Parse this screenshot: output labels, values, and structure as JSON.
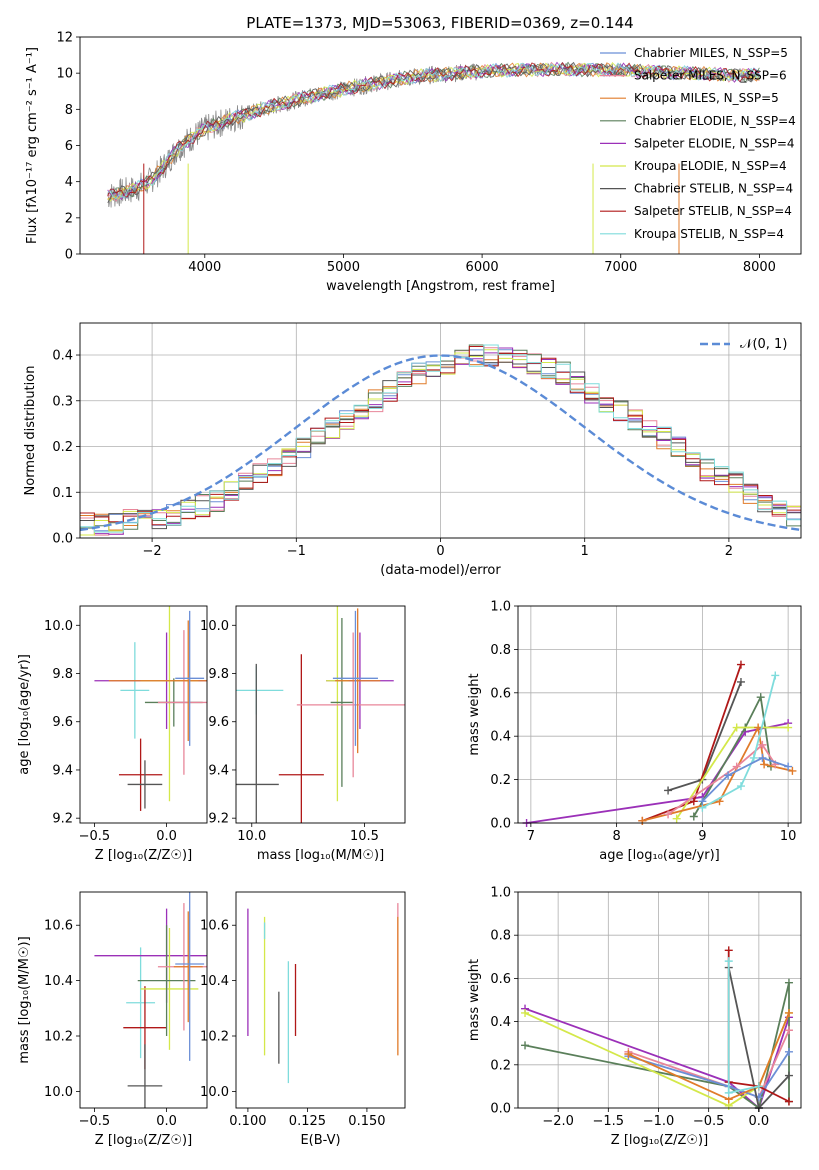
{
  "chart_data": [
    {
      "type": "line",
      "title": "PLATE=1373, MJD=53063, FIBERID=0369, z=0.144",
      "xlabel": "wavelength [Angstrom, rest frame]",
      "ylabel": "Flux [fλ10⁻¹⁷ erg cm⁻² s⁻¹ A⁻¹]",
      "xlim": [
        3100,
        8300
      ],
      "ylim": [
        0,
        12
      ],
      "xticks": [
        4000,
        5000,
        6000,
        7000,
        8000
      ],
      "yticks": [
        0,
        2,
        4,
        6,
        8,
        10,
        12
      ],
      "legend_position": "top-right",
      "series": [
        {
          "name": "Chabrier MILES, N_SSP=5",
          "color": "#6b8fd6"
        },
        {
          "name": "Salpeter MILES, N_SSP=6",
          "color": "#e8869a"
        },
        {
          "name": "Kroupa MILES, N_SSP=5",
          "color": "#e07b2a"
        },
        {
          "name": "Chabrier ELODIE, N_SSP=4",
          "color": "#5a7f5a"
        },
        {
          "name": "Salpeter ELODIE, N_SSP=4",
          "color": "#9b30b8"
        },
        {
          "name": "Kroupa ELODIE, N_SSP=4",
          "color": "#d4e84a"
        },
        {
          "name": "Chabrier STELIB, N_SSP=4",
          "color": "#555555"
        },
        {
          "name": "Salpeter STELIB, N_SSP=4",
          "color": "#b01818"
        },
        {
          "name": "Kroupa STELIB, N_SSP=4",
          "color": "#7fdcdc"
        }
      ],
      "continuum": {
        "x": [
          3300,
          3400,
          3500,
          3600,
          3700,
          3800,
          3900,
          4000,
          4200,
          4500,
          4800,
          5000,
          5200,
          5500,
          5800,
          6000,
          6300,
          6600,
          6900,
          7200,
          7500,
          7800,
          8000
        ],
        "y": [
          3.2,
          3.4,
          3.6,
          4.0,
          4.8,
          5.8,
          6.4,
          6.9,
          7.5,
          8.2,
          8.8,
          9.1,
          9.4,
          9.8,
          10.0,
          10.1,
          10.2,
          10.2,
          10.2,
          10.1,
          10.0,
          9.9,
          9.9
        ]
      }
    },
    {
      "type": "histogram",
      "xlabel": "(data-model)/error",
      "ylabel": "Normed distribution",
      "xlim": [
        -2.5,
        2.5
      ],
      "ylim": [
        0,
        0.47
      ],
      "xticks": [
        -2,
        -1,
        0,
        1,
        2
      ],
      "yticks": [
        0.0,
        0.1,
        0.2,
        0.3,
        0.4
      ],
      "grid": true,
      "legend_position": "top-right",
      "reference_curve": "𝒩(0, 1)",
      "reference_color": "#5b8bd6",
      "bin_width": 0.1,
      "bin_start": -2.5,
      "base_values": [
        0.03,
        0.03,
        0.03,
        0.04,
        0.04,
        0.04,
        0.05,
        0.06,
        0.07,
        0.08,
        0.1,
        0.12,
        0.14,
        0.15,
        0.18,
        0.2,
        0.22,
        0.24,
        0.26,
        0.28,
        0.3,
        0.32,
        0.34,
        0.36,
        0.37,
        0.38,
        0.39,
        0.4,
        0.4,
        0.4,
        0.39,
        0.38,
        0.37,
        0.36,
        0.34,
        0.32,
        0.3,
        0.28,
        0.26,
        0.24,
        0.22,
        0.2,
        0.18,
        0.15,
        0.14,
        0.12,
        0.1,
        0.08,
        0.06,
        0.05
      ]
    },
    {
      "type": "errorbar",
      "xlabel": "Z [log₁₀(Z/Z☉)]",
      "ylabel": "age  [log₁₀(age/yr)]",
      "xlim": [
        -0.6,
        0.28
      ],
      "ylim": [
        9.18,
        10.08
      ],
      "xticks": [
        -0.5,
        0.0
      ],
      "yticks": [
        9.2,
        9.4,
        9.6,
        9.8,
        10.0
      ],
      "points": [
        {
          "x": -0.22,
          "y": 9.73,
          "xerr": 0.1,
          "yerr": 0.2,
          "color": "#7fdcdc"
        },
        {
          "x": -0.18,
          "y": 9.38,
          "xerr": 0.15,
          "yerr": 0.15,
          "color": "#b01818"
        },
        {
          "x": -0.15,
          "y": 9.34,
          "xerr": 0.12,
          "yerr": 0.1,
          "color": "#555555"
        },
        {
          "x": 0.0,
          "y": 9.77,
          "xerr": 0.5,
          "yerr": 0.2,
          "color": "#9b30b8"
        },
        {
          "x": 0.02,
          "y": 9.77,
          "xerr": 0.2,
          "yerr": 0.5,
          "color": "#d4e84a"
        },
        {
          "x": 0.05,
          "y": 9.68,
          "xerr": 0.2,
          "yerr": 0.1,
          "color": "#5a7f5a"
        },
        {
          "x": 0.12,
          "y": 9.68,
          "xerr": 0.18,
          "yerr": 0.3,
          "color": "#e8869a"
        },
        {
          "x": 0.15,
          "y": 9.77,
          "xerr": 0.55,
          "yerr": 0.25,
          "color": "#e07b2a"
        },
        {
          "x": 0.16,
          "y": 9.78,
          "xerr": 0.1,
          "yerr": 0.28,
          "color": "#6b8fd6"
        }
      ]
    },
    {
      "type": "errorbar",
      "xlabel": "mass [log₁₀(M/M☉)]",
      "xlim": [
        9.93,
        10.68
      ],
      "ylim": [
        9.18,
        10.08
      ],
      "xticks": [
        10.0,
        10.5
      ],
      "yticks": [
        9.2,
        9.4,
        9.6,
        9.8,
        10.0
      ],
      "points": [
        {
          "x": 10.02,
          "y": 9.73,
          "xerr": 0.12,
          "yerr": 0.1,
          "color": "#7fdcdc"
        },
        {
          "x": 10.22,
          "y": 9.38,
          "xerr": 0.1,
          "yerr": 0.5,
          "color": "#b01818"
        },
        {
          "x": 10.02,
          "y": 9.34,
          "xerr": 0.1,
          "yerr": 0.5,
          "color": "#555555"
        },
        {
          "x": 10.48,
          "y": 9.77,
          "xerr": 0.15,
          "yerr": 0.2,
          "color": "#9b30b8"
        },
        {
          "x": 10.38,
          "y": 9.77,
          "xerr": 0.05,
          "yerr": 0.5,
          "color": "#d4e84a"
        },
        {
          "x": 10.4,
          "y": 9.68,
          "xerr": 0.05,
          "yerr": 0.35,
          "color": "#5a7f5a"
        },
        {
          "x": 10.45,
          "y": 9.67,
          "xerr": 0.25,
          "yerr": 0.3,
          "color": "#e8869a"
        },
        {
          "x": 10.47,
          "y": 9.77,
          "xerr": 0.1,
          "yerr": 0.3,
          "color": "#e07b2a"
        },
        {
          "x": 10.46,
          "y": 9.78,
          "xerr": 0.1,
          "yerr": 0.28,
          "color": "#6b8fd6"
        }
      ]
    },
    {
      "type": "line",
      "xlabel": "age  [log₁₀(age/yr)]",
      "ylabel": "mass weight",
      "xlim": [
        6.85,
        10.15
      ],
      "ylim": [
        0,
        1
      ],
      "xticks": [
        7,
        8,
        9,
        10
      ],
      "yticks": [
        0.0,
        0.2,
        0.4,
        0.6,
        0.8,
        1.0
      ],
      "grid": true,
      "series": [
        {
          "color": "#9b30b8",
          "x": [
            6.95,
            9.0,
            9.5,
            10.0
          ],
          "y": [
            0.0,
            0.12,
            0.42,
            0.46
          ]
        },
        {
          "color": "#555555",
          "x": [
            8.6,
            9.0,
            9.45
          ],
          "y": [
            0.15,
            0.2,
            0.65
          ]
        },
        {
          "color": "#b01818",
          "x": [
            8.3,
            8.9,
            9.45
          ],
          "y": [
            0.01,
            0.1,
            0.73
          ]
        },
        {
          "color": "#5a7f5a",
          "x": [
            8.9,
            9.5,
            9.68,
            9.8
          ],
          "y": [
            0.03,
            0.44,
            0.58,
            0.26
          ]
        },
        {
          "color": "#d4e84a",
          "x": [
            8.7,
            9.4,
            10.0
          ],
          "y": [
            0.02,
            0.44,
            0.44
          ]
        },
        {
          "color": "#e07b2a",
          "x": [
            8.3,
            9.2,
            9.65,
            9.72,
            10.05
          ],
          "y": [
            0.01,
            0.1,
            0.44,
            0.27,
            0.24
          ]
        },
        {
          "color": "#e8869a",
          "x": [
            8.6,
            9.4,
            9.7,
            9.85
          ],
          "y": [
            0.04,
            0.26,
            0.36,
            0.27
          ]
        },
        {
          "color": "#7fdcdc",
          "x": [
            9.0,
            9.45,
            9.6,
            9.85
          ],
          "y": [
            0.07,
            0.17,
            0.3,
            0.68
          ]
        },
        {
          "color": "#6b8fd6",
          "x": [
            9.0,
            9.3,
            9.7,
            10.0
          ],
          "y": [
            0.1,
            0.22,
            0.3,
            0.26
          ]
        }
      ]
    },
    {
      "type": "errorbar",
      "xlabel": "Z [log₁₀(Z/Z☉)]",
      "ylabel": "mass [log₁₀(M/M☉)]",
      "xlim": [
        -0.6,
        0.28
      ],
      "ylim": [
        9.94,
        10.72
      ],
      "xticks": [
        -0.5,
        0.0
      ],
      "yticks": [
        10.0,
        10.2,
        10.4,
        10.6
      ],
      "points": [
        {
          "x": -0.18,
          "y": 10.32,
          "xerr": 0.1,
          "yerr": 0.2,
          "color": "#7fdcdc"
        },
        {
          "x": -0.15,
          "y": 10.23,
          "xerr": 0.15,
          "yerr": 0.15,
          "color": "#b01818"
        },
        {
          "x": -0.15,
          "y": 10.02,
          "xerr": 0.12,
          "yerr": 0.15,
          "color": "#555555"
        },
        {
          "x": 0.0,
          "y": 10.49,
          "xerr": 0.5,
          "yerr": 0.17,
          "color": "#9b30b8"
        },
        {
          "x": 0.02,
          "y": 10.37,
          "xerr": 0.2,
          "yerr": 0.22,
          "color": "#d4e84a"
        },
        {
          "x": 0.0,
          "y": 10.4,
          "xerr": 0.2,
          "yerr": 0.2,
          "color": "#5a7f5a"
        },
        {
          "x": 0.12,
          "y": 10.45,
          "xerr": 0.18,
          "yerr": 0.23,
          "color": "#e8869a"
        },
        {
          "x": 0.15,
          "y": 10.45,
          "xerr": 0.1,
          "yerr": 0.2,
          "color": "#e07b2a"
        },
        {
          "x": 0.16,
          "y": 10.46,
          "xerr": 0.1,
          "yerr": 0.35,
          "color": "#6b8fd6"
        }
      ]
    },
    {
      "type": "errorbar",
      "xlabel": "E(B-V)",
      "xlim": [
        0.095,
        0.166
      ],
      "ylim": [
        9.94,
        10.72
      ],
      "xticks": [
        0.1,
        0.125,
        0.15
      ],
      "yticks": [
        10.0,
        10.2,
        10.4,
        10.6
      ],
      "points": [
        {
          "x": 0.1,
          "y": 10.43,
          "yerr": 0.23,
          "color": "#9b30b8"
        },
        {
          "x": 0.107,
          "y": 10.38,
          "yerr": 0.25,
          "color": "#d4e84a"
        },
        {
          "x": 0.107,
          "y": 10.58,
          "yerr": 0.03,
          "color": "#7fdcdc"
        },
        {
          "x": 0.113,
          "y": 10.23,
          "yerr": 0.13,
          "color": "#555555"
        },
        {
          "x": 0.117,
          "y": 10.25,
          "yerr": 0.22,
          "color": "#7fdcdc"
        },
        {
          "x": 0.12,
          "y": 10.33,
          "yerr": 0.13,
          "color": "#b01818"
        },
        {
          "x": 0.163,
          "y": 10.45,
          "yerr": 0.23,
          "color": "#e8869a"
        },
        {
          "x": 0.163,
          "y": 10.38,
          "yerr": 0.25,
          "color": "#e07b2a"
        }
      ]
    },
    {
      "type": "line",
      "xlabel": "Z [log₁₀(Z/Z☉)]",
      "ylabel": "mass weight",
      "xlim": [
        -2.4,
        0.42
      ],
      "ylim": [
        0,
        1
      ],
      "xticks": [
        -2.0,
        -1.5,
        -1.0,
        -0.5,
        0.0
      ],
      "yticks": [
        0.0,
        0.2,
        0.4,
        0.6,
        0.8,
        1.0
      ],
      "grid": true,
      "series": [
        {
          "color": "#9b30b8",
          "x": [
            -2.33,
            -0.3,
            0.0,
            0.3
          ],
          "y": [
            0.46,
            0.12,
            0.0,
            0.42
          ]
        },
        {
          "color": "#5a7f5a",
          "x": [
            -2.33,
            -0.3,
            0.0,
            0.3,
            0.3
          ],
          "y": [
            0.29,
            0.1,
            0.0,
            0.58,
            0.03
          ]
        },
        {
          "color": "#d4e84a",
          "x": [
            -2.33,
            -0.3,
            0.0,
            0.3
          ],
          "y": [
            0.44,
            0.01,
            0.1,
            0.44
          ]
        },
        {
          "color": "#e8869a",
          "x": [
            -1.3,
            -0.3,
            0.0,
            0.3
          ],
          "y": [
            0.26,
            0.1,
            0.05,
            0.36
          ]
        },
        {
          "color": "#6b8fd6",
          "x": [
            -1.3,
            -0.3,
            0.0,
            0.3
          ],
          "y": [
            0.24,
            0.1,
            0.05,
            0.26
          ]
        },
        {
          "color": "#e07b2a",
          "x": [
            -1.3,
            -0.3,
            0.0,
            0.3
          ],
          "y": [
            0.25,
            0.04,
            0.1,
            0.44
          ]
        },
        {
          "color": "#555555",
          "x": [
            -0.3,
            0.0,
            0.3
          ],
          "y": [
            0.65,
            0.0,
            0.15
          ]
        },
        {
          "color": "#b01818",
          "x": [
            -0.3,
            -0.3,
            0.0,
            0.3
          ],
          "y": [
            0.73,
            0.12,
            0.1,
            0.03
          ]
        },
        {
          "color": "#7fdcdc",
          "x": [
            -0.3,
            -0.3,
            0.0
          ],
          "y": [
            0.68,
            0.07,
            0.1
          ]
        }
      ]
    }
  ]
}
